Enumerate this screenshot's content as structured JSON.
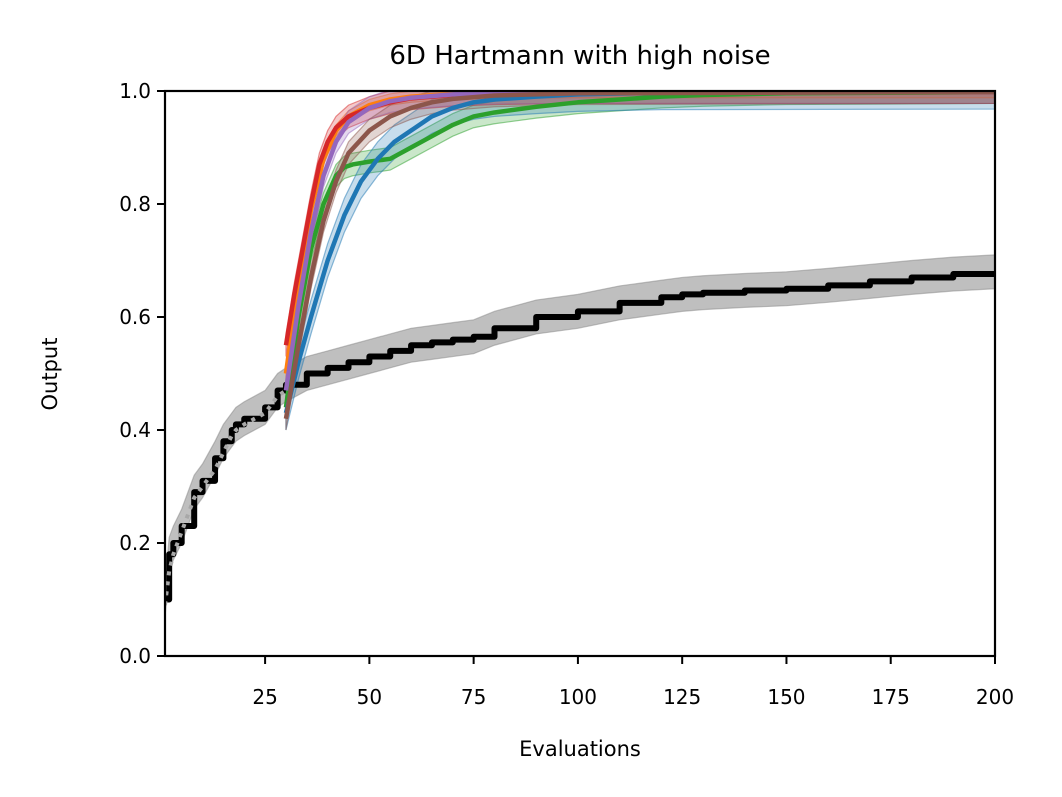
{
  "chart_data": {
    "type": "line",
    "title": "6D Hartmann with high noise",
    "xlabel": "Evaluations",
    "ylabel": "Output",
    "xlim": [
      1,
      200
    ],
    "ylim": [
      0,
      1
    ],
    "xticks": [
      25,
      50,
      75,
      100,
      125,
      150,
      175,
      200
    ],
    "yticks": [
      0.0,
      0.2,
      0.4,
      0.6,
      0.8,
      1.0
    ],
    "xtick_labels": [
      "25",
      "50",
      "75",
      "100",
      "125",
      "150",
      "175",
      "200"
    ],
    "ytick_labels": [
      "0.0",
      "0.2",
      "0.4",
      "0.6",
      "0.8",
      "1.0"
    ],
    "grid": false,
    "legend": "none",
    "series": [
      {
        "color": "#000000",
        "style": "solid",
        "band": 0.03,
        "x": [
          1,
          2,
          3,
          5,
          8,
          10,
          13,
          15,
          17,
          18,
          20,
          25,
          28,
          30,
          35,
          40,
          45,
          50,
          55,
          60,
          65,
          70,
          75,
          80,
          90,
          100,
          110,
          120,
          125,
          130,
          140,
          150,
          160,
          170,
          180,
          190,
          200
        ],
        "y": [
          0.1,
          0.18,
          0.2,
          0.23,
          0.29,
          0.31,
          0.35,
          0.38,
          0.4,
          0.41,
          0.42,
          0.44,
          0.47,
          0.48,
          0.5,
          0.51,
          0.52,
          0.53,
          0.54,
          0.55,
          0.555,
          0.56,
          0.565,
          0.58,
          0.6,
          0.61,
          0.625,
          0.635,
          0.64,
          0.643,
          0.647,
          0.65,
          0.656,
          0.663,
          0.67,
          0.676,
          0.68
        ]
      },
      {
        "color": "#a8a8a8",
        "style": "dotted",
        "band": 0,
        "x": [
          1,
          2,
          3,
          5,
          8,
          10,
          13,
          15,
          17,
          18,
          20,
          25,
          28,
          30
        ],
        "y": [
          0.09,
          0.15,
          0.18,
          0.22,
          0.28,
          0.3,
          0.33,
          0.36,
          0.39,
          0.4,
          0.41,
          0.43,
          0.46,
          0.47
        ]
      },
      {
        "color": "#2ca02c",
        "style": "solid",
        "band": 0.02,
        "x": [
          30,
          33,
          36,
          39,
          42,
          44,
          46,
          50,
          55,
          60,
          65,
          70,
          75,
          80,
          90,
          100,
          110,
          120,
          130,
          150,
          200
        ],
        "y": [
          0.44,
          0.6,
          0.72,
          0.8,
          0.85,
          0.865,
          0.87,
          0.875,
          0.88,
          0.9,
          0.92,
          0.94,
          0.955,
          0.962,
          0.972,
          0.98,
          0.985,
          0.99,
          0.993,
          0.996,
          0.998
        ]
      },
      {
        "color": "#1f77b4",
        "style": "solid",
        "band": 0.03,
        "x": [
          30,
          33,
          36,
          40,
          44,
          48,
          52,
          56,
          60,
          65,
          70,
          75,
          80,
          90,
          100,
          120,
          200
        ],
        "y": [
          0.43,
          0.52,
          0.6,
          0.7,
          0.78,
          0.84,
          0.88,
          0.91,
          0.93,
          0.955,
          0.97,
          0.98,
          0.985,
          0.99,
          0.994,
          0.997,
          0.998
        ]
      },
      {
        "color": "#ff7f0e",
        "style": "solid",
        "band": 0.01,
        "x": [
          30,
          33,
          36,
          39,
          42,
          45,
          50,
          55,
          60,
          70,
          80,
          100,
          200
        ],
        "y": [
          0.5,
          0.66,
          0.79,
          0.88,
          0.93,
          0.955,
          0.975,
          0.985,
          0.99,
          0.995,
          0.997,
          0.998,
          0.998
        ]
      },
      {
        "color": "#d62728",
        "style": "solid",
        "band": 0.02,
        "x": [
          30,
          32,
          34,
          36,
          38,
          40,
          42,
          45,
          50,
          55,
          60,
          70,
          80,
          100,
          200
        ],
        "y": [
          0.55,
          0.64,
          0.72,
          0.8,
          0.87,
          0.91,
          0.935,
          0.955,
          0.97,
          0.98,
          0.987,
          0.993,
          0.996,
          0.998,
          0.998
        ]
      },
      {
        "color": "#9467bd",
        "style": "solid",
        "band": 0.02,
        "x": [
          30,
          33,
          36,
          39,
          42,
          45,
          50,
          55,
          60,
          70,
          80,
          100,
          200
        ],
        "y": [
          0.47,
          0.62,
          0.75,
          0.85,
          0.91,
          0.945,
          0.97,
          0.982,
          0.988,
          0.994,
          0.997,
          0.998,
          0.998
        ]
      },
      {
        "color": "#8c564b",
        "style": "solid",
        "band": 0.02,
        "x": [
          30,
          33,
          36,
          39,
          42,
          45,
          50,
          55,
          60,
          65,
          70,
          80,
          100,
          200
        ],
        "y": [
          0.42,
          0.55,
          0.67,
          0.77,
          0.84,
          0.89,
          0.93,
          0.955,
          0.97,
          0.98,
          0.986,
          0.992,
          0.996,
          0.998
        ]
      }
    ]
  }
}
